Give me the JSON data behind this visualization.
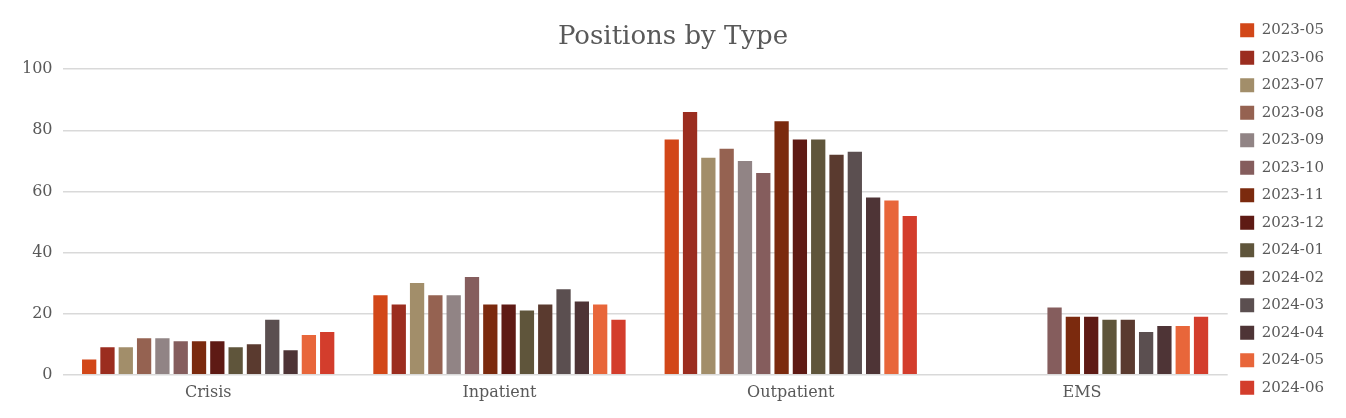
{
  "chart_data": {
    "type": "bar",
    "title": "Positions by Type",
    "categories": [
      "Crisis",
      "Inpatient",
      "Outpatient",
      "EMS"
    ],
    "series": [
      {
        "name": "2023-05",
        "color": "#d24718",
        "values": [
          5,
          26,
          77,
          null
        ]
      },
      {
        "name": "2023-06",
        "color": "#9b2d1f",
        "values": [
          9,
          23,
          86,
          null
        ]
      },
      {
        "name": "2023-07",
        "color": "#a28e6a",
        "values": [
          9,
          30,
          71,
          null
        ]
      },
      {
        "name": "2023-08",
        "color": "#956251",
        "values": [
          12,
          26,
          74,
          null
        ]
      },
      {
        "name": "2023-09",
        "color": "#918485",
        "values": [
          12,
          26,
          70,
          null
        ]
      },
      {
        "name": "2023-10",
        "color": "#855d5d",
        "values": [
          11,
          32,
          66,
          22
        ]
      },
      {
        "name": "2023-11",
        "color": "#7b2a0e",
        "values": [
          11,
          23,
          83,
          19
        ]
      },
      {
        "name": "2023-12",
        "color": "#5e1a14",
        "values": [
          11,
          23,
          77,
          19
        ]
      },
      {
        "name": "2024-01",
        "color": "#5f553b",
        "values": [
          9,
          21,
          77,
          18
        ]
      },
      {
        "name": "2024-02",
        "color": "#5a3a2f",
        "values": [
          10,
          23,
          72,
          18
        ]
      },
      {
        "name": "2024-03",
        "color": "#5b4f50",
        "values": [
          18,
          28,
          73,
          14
        ]
      },
      {
        "name": "2024-04",
        "color": "#4e3436",
        "values": [
          8,
          24,
          58,
          16
        ]
      },
      {
        "name": "2024-05",
        "color": "#e8663a",
        "values": [
          13,
          23,
          57,
          16
        ]
      },
      {
        "name": "2024-06",
        "color": "#d33d2c",
        "values": [
          14,
          18,
          52,
          19
        ]
      }
    ],
    "ylim": [
      0,
      100
    ],
    "yticks": [
      0,
      20,
      40,
      60,
      80,
      100
    ],
    "grid": "y",
    "legend": "right"
  }
}
